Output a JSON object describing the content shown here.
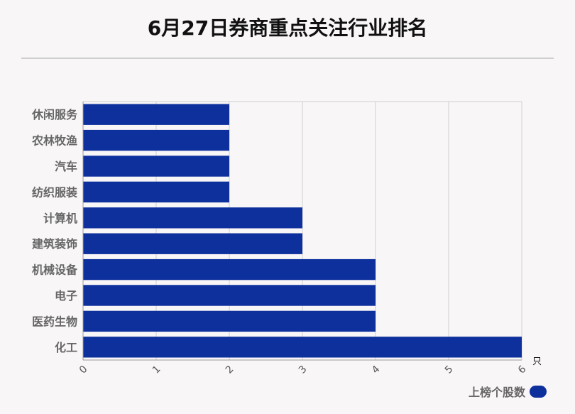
{
  "title": "6月27日券商重点关注行业排名",
  "unit": "只",
  "colors": {
    "bar": "#0d309c",
    "grid": "#d0d0d0",
    "axis": "#999999"
  },
  "chart_data": {
    "type": "bar",
    "orientation": "horizontal",
    "categories": [
      "休闲服务",
      "农林牧渔",
      "汽车",
      "纺织服装",
      "计算机",
      "建筑装饰",
      "机械设备",
      "电子",
      "医药生物",
      "化工"
    ],
    "series": [
      {
        "name": "上榜个股数",
        "values": [
          2,
          2,
          2,
          2,
          3,
          3,
          4,
          4,
          4,
          6
        ]
      }
    ],
    "xlim": [
      0,
      6
    ],
    "xticks": [
      "0",
      "1",
      "2",
      "3",
      "4",
      "5",
      "6"
    ],
    "grid": true,
    "legend": "bottom-right"
  }
}
